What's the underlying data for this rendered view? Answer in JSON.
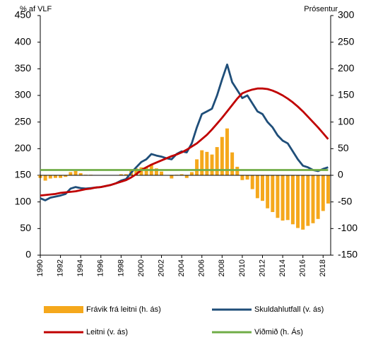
{
  "chart_data": {
    "type": "line",
    "y_label": "% af VLF",
    "y2_label": "Prósentur",
    "x": [
      1990,
      1990.5,
      1991,
      1991.5,
      1992,
      1992.5,
      1993,
      1993.5,
      1994,
      1994.5,
      1995,
      1995.5,
      1996,
      1996.5,
      1997,
      1997.5,
      1998,
      1998.5,
      1999,
      1999.5,
      2000,
      2000.5,
      2001,
      2001.5,
      2002,
      2002.5,
      2003,
      2003.5,
      2004,
      2004.5,
      2005,
      2005.5,
      2006,
      2006.5,
      2007,
      2007.5,
      2008,
      2008.5,
      2009,
      2009.5,
      2010,
      2010.5,
      2011,
      2011.5,
      2012,
      2012.5,
      2013,
      2013.5,
      2014,
      2014.5,
      2015,
      2015.5,
      2016,
      2016.5,
      2017,
      2017.5,
      2018,
      2018.5
    ],
    "xlim": [
      1990,
      2018.75
    ],
    "xticks": [
      1990,
      1992,
      1994,
      1996,
      1998,
      2000,
      2002,
      2004,
      2006,
      2008,
      2010,
      2012,
      2014,
      2016,
      2018
    ],
    "ylim": [
      0,
      450
    ],
    "yticks": [
      0,
      50,
      100,
      150,
      200,
      250,
      300,
      350,
      400,
      450
    ],
    "y2lim": [
      -150,
      300
    ],
    "y2ticks": [
      -150,
      -100,
      -50,
      0,
      50,
      100,
      150,
      200,
      250,
      300
    ],
    "series": [
      {
        "name": "Frávik frá leitni (h. ás)",
        "type": "bar",
        "axis": "y2",
        "color": "#f5a81c",
        "values": [
          -5,
          -10,
          -6,
          -5,
          -5,
          -3,
          6,
          8,
          4,
          1,
          1,
          0,
          0,
          0,
          0,
          0,
          2,
          2,
          9,
          13,
          15,
          15,
          20,
          13,
          7,
          0,
          -6,
          1,
          2,
          -5,
          6,
          30,
          47,
          44,
          39,
          53,
          72,
          88,
          43,
          16,
          -9,
          -8,
          -26,
          -43,
          -48,
          -62,
          -69,
          -80,
          -85,
          -84,
          -92,
          -99,
          -102,
          -95,
          -90,
          -82,
          -67,
          -53
        ]
      },
      {
        "name": "Skuldahlutfall (v. ás)",
        "type": "line",
        "color": "#1f4e79",
        "values": [
          107,
          103,
          108,
          110,
          112,
          115,
          125,
          128,
          126,
          125,
          126,
          127,
          128,
          130,
          132,
          135,
          140,
          143,
          155,
          165,
          175,
          180,
          190,
          187,
          185,
          182,
          180,
          190,
          195,
          193,
          210,
          240,
          265,
          270,
          275,
          300,
          330,
          358,
          325,
          310,
          295,
          300,
          285,
          270,
          265,
          250,
          240,
          225,
          215,
          210,
          195,
          180,
          168,
          165,
          160,
          158,
          162,
          165
        ]
      },
      {
        "name": "Leitni (v. ás)",
        "type": "line",
        "color": "#c00000",
        "values": [
          112,
          113,
          114,
          115,
          117,
          118,
          119,
          120,
          122,
          124,
          125,
          127,
          128,
          130,
          132,
          135,
          138,
          141,
          146,
          152,
          160,
          165,
          170,
          174,
          178,
          182,
          186,
          189,
          193,
          198,
          204,
          210,
          218,
          226,
          236,
          247,
          258,
          270,
          282,
          294,
          304,
          308,
          311,
          313,
          313,
          312,
          309,
          305,
          300,
          294,
          287,
          279,
          270,
          260,
          250,
          240,
          229,
          218
        ]
      },
      {
        "name": "Viðmið (h. Ás)",
        "type": "line",
        "axis": "y2",
        "color": "#70ad47",
        "values": [
          10,
          10,
          10,
          10,
          10,
          10,
          10,
          10,
          10,
          10,
          10,
          10,
          10,
          10,
          10,
          10,
          10,
          10,
          10,
          10,
          10,
          10,
          10,
          10,
          10,
          10,
          10,
          10,
          10,
          10,
          10,
          10,
          10,
          10,
          10,
          10,
          10,
          10,
          10,
          10,
          10,
          10,
          10,
          10,
          10,
          10,
          10,
          10,
          10,
          10,
          10,
          10,
          10,
          10,
          10,
          10,
          10,
          10
        ]
      }
    ]
  }
}
